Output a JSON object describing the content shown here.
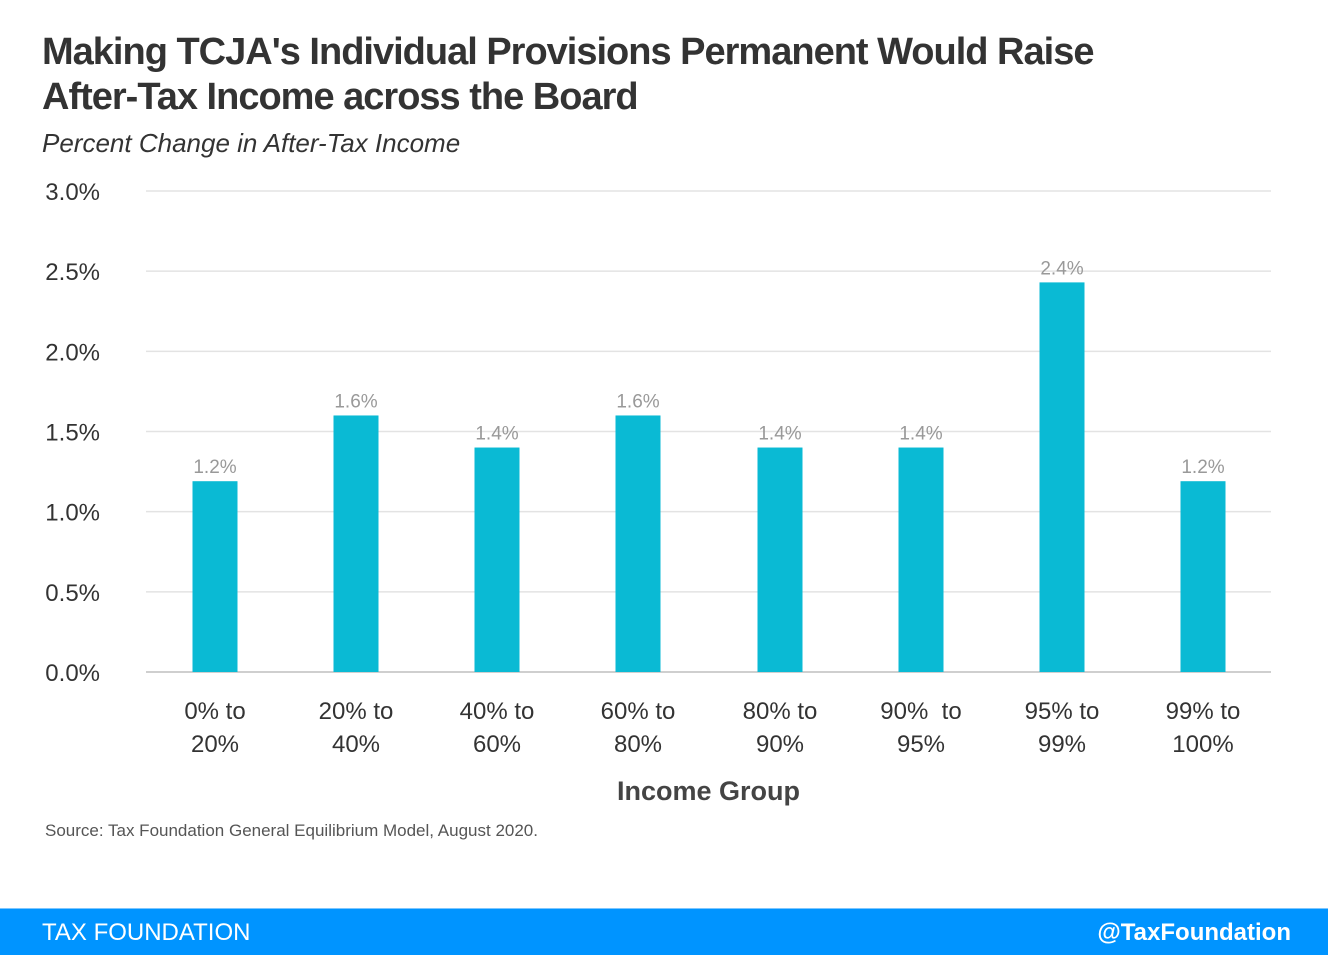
{
  "header": {
    "title_line1": "Making TCJA's Individual Provisions Permanent Would Raise",
    "title_line2": "After-Tax Income across the Board",
    "subtitle": "Percent Change in After-Tax Income"
  },
  "chart_data": {
    "type": "bar",
    "title": "Making TCJA's Individual Provisions Permanent Would Raise After-Tax Income across the Board",
    "subtitle": "Percent Change in After-Tax Income",
    "xlabel": "Income Group",
    "ylabel": "",
    "categories": [
      [
        "0% to",
        "20%"
      ],
      [
        "20% to",
        "40%"
      ],
      [
        "40% to",
        "60%"
      ],
      [
        "60% to",
        "80%"
      ],
      [
        "80% to",
        "90%"
      ],
      [
        "90%  to",
        "95%"
      ],
      [
        "95% to",
        "99%"
      ],
      [
        "99% to",
        "100%"
      ]
    ],
    "values": [
      1.2,
      1.6,
      1.4,
      1.6,
      1.4,
      1.4,
      2.4,
      1.2
    ],
    "actual_values": [
      1.19,
      1.6,
      1.4,
      1.6,
      1.4,
      1.4,
      2.43,
      1.19
    ],
    "data_labels": [
      "1.2%",
      "1.6%",
      "1.4%",
      "1.6%",
      "1.4%",
      "1.4%",
      "2.4%",
      "1.2%"
    ],
    "ylim": [
      0,
      3.0
    ],
    "yticks": [
      0,
      0.5,
      1.0,
      1.5,
      2.0,
      2.5,
      3.0
    ],
    "ytick_labels": [
      "0.0%",
      "0.5%",
      "1.0%",
      "1.5%",
      "2.0%",
      "2.5%",
      "3.0%"
    ],
    "grid": true,
    "bar_color": "#0abad4"
  },
  "source": "Source: Tax Foundation General Equilibrium Model, August 2020.",
  "footer": {
    "brand": "TAX FOUNDATION",
    "handle": "@TaxFoundation",
    "color": "#0094ff"
  }
}
